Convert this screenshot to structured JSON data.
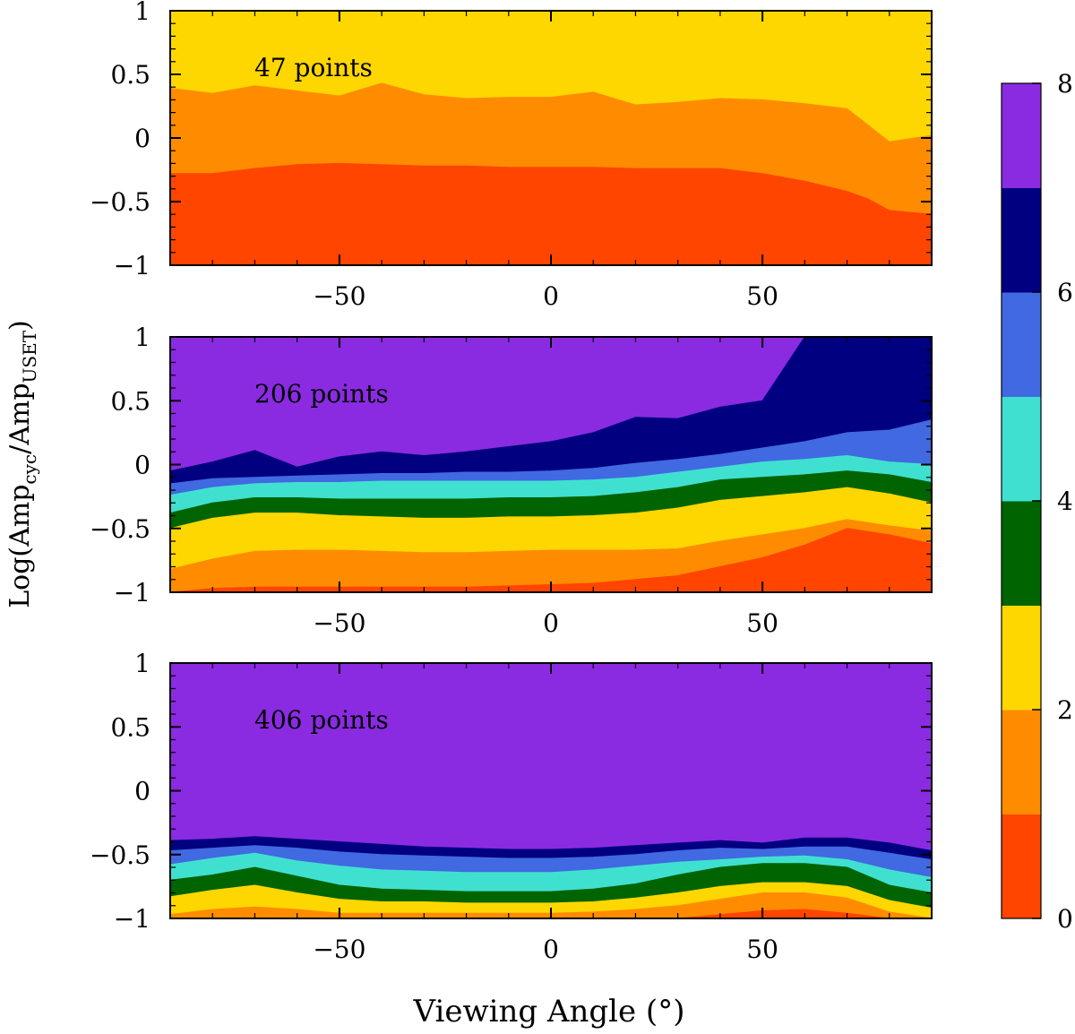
{
  "chart_data": {
    "type": "heatmap",
    "xlabel": "Viewing Angle (°)",
    "ylabel": {
      "prefix": "Log(Amp",
      "sub1": "cyc",
      "mid": "/Amp",
      "sub2": "USET",
      "suffix": ")"
    },
    "xlim": [
      -90,
      90
    ],
    "ylim": [
      -1,
      1
    ],
    "xticks": [
      -50,
      0,
      50
    ],
    "yticks": [
      1,
      0.5,
      0,
      -0.5,
      -1
    ],
    "ytick_labels": [
      "1",
      "0.5",
      "0",
      "−0.5",
      "−1"
    ],
    "xtick_labels": [
      "−50",
      "0",
      "50"
    ],
    "colorbar": {
      "min": 0,
      "max": 8,
      "ticks": [
        0,
        2,
        4,
        6,
        8
      ],
      "tick_labels": [
        "0",
        "2",
        "4",
        "6",
        "8"
      ],
      "colors": [
        "#ff4500",
        "#ff8c00",
        "#ffd700",
        "#006400",
        "#40e0d0",
        "#4169e1",
        "#000080",
        "#8a2be2"
      ]
    },
    "panels": [
      {
        "annotation": "47 points",
        "x": [
          -90,
          -80,
          -70,
          -60,
          -50,
          -40,
          -30,
          -20,
          -10,
          0,
          10,
          20,
          30,
          40,
          50,
          60,
          70,
          75,
          80,
          90
        ],
        "boundaries": [
          [
            -0.28,
            -0.28,
            -0.24,
            -0.21,
            -0.2,
            -0.21,
            -0.22,
            -0.22,
            -0.23,
            -0.23,
            -0.23,
            -0.24,
            -0.24,
            -0.24,
            -0.28,
            -0.34,
            -0.42,
            -0.48,
            -0.57,
            -0.6
          ],
          [
            0.39,
            0.35,
            0.41,
            0.37,
            0.33,
            0.43,
            0.34,
            0.31,
            0.32,
            0.32,
            0.36,
            0.26,
            0.28,
            0.31,
            0.3,
            0.27,
            0.23,
            0.1,
            -0.03,
            0.02
          ]
        ]
      },
      {
        "annotation": "206 points",
        "x": [
          -90,
          -80,
          -70,
          -60,
          -50,
          -40,
          -30,
          -20,
          -10,
          0,
          10,
          20,
          30,
          40,
          50,
          60,
          70,
          80,
          90
        ],
        "boundaries": [
          [
            -1.0,
            -0.97,
            -0.96,
            -0.96,
            -0.96,
            -0.96,
            -0.96,
            -0.96,
            -0.95,
            -0.94,
            -0.93,
            -0.9,
            -0.87,
            -0.8,
            -0.73,
            -0.63,
            -0.5,
            -0.55,
            -0.62
          ],
          [
            -0.82,
            -0.74,
            -0.68,
            -0.67,
            -0.67,
            -0.68,
            -0.69,
            -0.69,
            -0.68,
            -0.67,
            -0.67,
            -0.67,
            -0.66,
            -0.6,
            -0.55,
            -0.5,
            -0.43,
            -0.48,
            -0.52
          ],
          [
            -0.5,
            -0.42,
            -0.38,
            -0.38,
            -0.4,
            -0.41,
            -0.42,
            -0.42,
            -0.41,
            -0.41,
            -0.4,
            -0.38,
            -0.34,
            -0.28,
            -0.25,
            -0.22,
            -0.18,
            -0.23,
            -0.3
          ],
          [
            -0.38,
            -0.3,
            -0.26,
            -0.26,
            -0.27,
            -0.27,
            -0.27,
            -0.27,
            -0.26,
            -0.26,
            -0.25,
            -0.22,
            -0.18,
            -0.12,
            -0.1,
            -0.08,
            -0.05,
            -0.08,
            -0.14
          ],
          [
            -0.24,
            -0.18,
            -0.15,
            -0.14,
            -0.14,
            -0.13,
            -0.13,
            -0.13,
            -0.13,
            -0.13,
            -0.12,
            -0.1,
            -0.06,
            -0.02,
            0.02,
            0.04,
            0.07,
            0.02,
            0.0
          ],
          [
            -0.15,
            -0.11,
            -0.1,
            -0.09,
            -0.08,
            -0.07,
            -0.07,
            -0.06,
            -0.06,
            -0.05,
            -0.03,
            0.01,
            0.04,
            0.08,
            0.13,
            0.18,
            0.25,
            0.27,
            0.35
          ],
          [
            -0.05,
            0.02,
            0.11,
            -0.02,
            0.06,
            0.1,
            0.07,
            0.1,
            0.14,
            0.18,
            0.25,
            0.37,
            0.36,
            0.45,
            0.5,
            1.0,
            1.0,
            1.0,
            1.0
          ]
        ]
      },
      {
        "annotation": "406 points",
        "x": [
          -90,
          -80,
          -70,
          -60,
          -50,
          -40,
          -30,
          -20,
          -10,
          0,
          10,
          20,
          30,
          40,
          50,
          60,
          70,
          80,
          90
        ],
        "boundaries": [
          [
            -1.0,
            -1.0,
            -1.0,
            -1.0,
            -1.0,
            -1.0,
            -1.0,
            -1.0,
            -1.0,
            -1.0,
            -1.0,
            -1.0,
            -1.0,
            -0.97,
            -0.94,
            -0.93,
            -0.96,
            -1.0,
            -1.0
          ],
          [
            -0.97,
            -0.93,
            -0.91,
            -0.93,
            -0.96,
            -0.96,
            -0.96,
            -0.96,
            -0.96,
            -0.96,
            -0.95,
            -0.93,
            -0.9,
            -0.85,
            -0.8,
            -0.8,
            -0.84,
            -0.95,
            -1.0
          ],
          [
            -0.83,
            -0.78,
            -0.74,
            -0.8,
            -0.85,
            -0.87,
            -0.87,
            -0.88,
            -0.88,
            -0.88,
            -0.87,
            -0.84,
            -0.8,
            -0.75,
            -0.72,
            -0.72,
            -0.75,
            -0.86,
            -0.92
          ],
          [
            -0.7,
            -0.66,
            -0.6,
            -0.67,
            -0.74,
            -0.77,
            -0.78,
            -0.79,
            -0.79,
            -0.79,
            -0.77,
            -0.73,
            -0.66,
            -0.6,
            -0.57,
            -0.57,
            -0.6,
            -0.74,
            -0.8
          ],
          [
            -0.58,
            -0.53,
            -0.49,
            -0.55,
            -0.59,
            -0.62,
            -0.63,
            -0.64,
            -0.64,
            -0.64,
            -0.62,
            -0.59,
            -0.56,
            -0.54,
            -0.52,
            -0.51,
            -0.54,
            -0.62,
            -0.68
          ],
          [
            -0.47,
            -0.45,
            -0.43,
            -0.45,
            -0.48,
            -0.5,
            -0.51,
            -0.52,
            -0.53,
            -0.53,
            -0.52,
            -0.5,
            -0.47,
            -0.45,
            -0.46,
            -0.44,
            -0.44,
            -0.49,
            -0.54
          ],
          [
            -0.39,
            -0.38,
            -0.36,
            -0.38,
            -0.4,
            -0.42,
            -0.44,
            -0.45,
            -0.46,
            -0.46,
            -0.45,
            -0.43,
            -0.41,
            -0.39,
            -0.41,
            -0.37,
            -0.37,
            -0.41,
            -0.47
          ]
        ]
      }
    ]
  }
}
